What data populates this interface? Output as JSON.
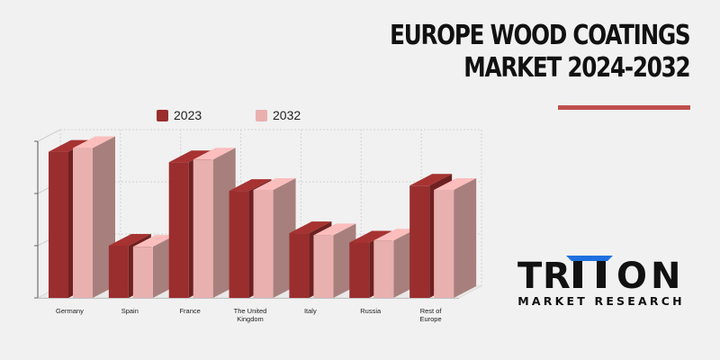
{
  "title_line1": "EUROPE WOOD COATINGS",
  "title_line2": "MARKET 2024-2032",
  "brand": {
    "name": "TRITON",
    "tagline": "MARKET RESEARCH",
    "accent_color": "#1e6fe0"
  },
  "colors": {
    "series_2023": "#9a2e2e",
    "series_2032": "#e8b0ae",
    "accent_rule": "#c0504d"
  },
  "chart_data": {
    "type": "bar",
    "style": "3d-clustered",
    "categories": [
      "Germany",
      "Spain",
      "France",
      "The United Kingdom",
      "Italy",
      "Russia",
      "Rest of Europe"
    ],
    "category_labels": [
      [
        "Germany"
      ],
      [
        "Spain"
      ],
      [
        "France"
      ],
      [
        "The United",
        "Kingdom"
      ],
      [
        "Italy"
      ],
      [
        "Russia"
      ],
      [
        "Rest of",
        "Europe"
      ]
    ],
    "series": [
      {
        "name": "2023",
        "values": [
          2.8,
          1.0,
          2.6,
          2.05,
          1.24,
          1.06,
          2.15
        ]
      },
      {
        "name": "2032",
        "values": [
          2.87,
          0.98,
          2.65,
          2.07,
          1.2,
          1.1,
          2.07
        ]
      }
    ],
    "ylim": [
      0,
      3
    ],
    "y_tick_labels_shown": false,
    "grid": true,
    "legend_position": "top"
  }
}
